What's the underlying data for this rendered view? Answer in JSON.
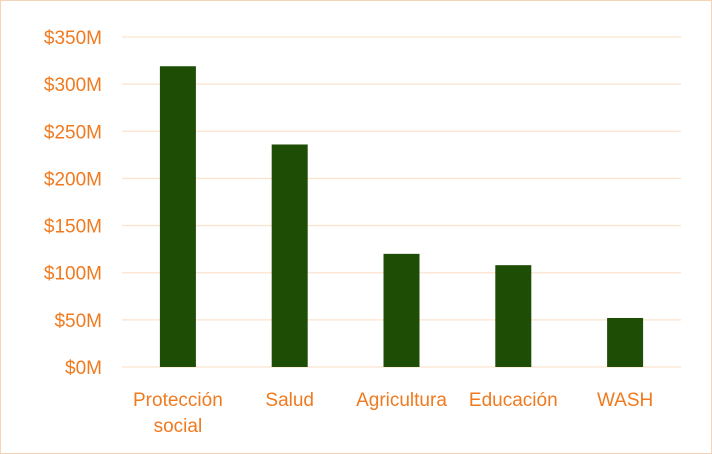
{
  "colors": {
    "bar": "#1e4d05",
    "label_text": "#f07a1f",
    "gridline": "#fbe3cf",
    "frame_border": "#f6d3b5"
  },
  "chart_data": {
    "type": "bar",
    "categories": [
      [
        "Protección",
        "social"
      ],
      [
        "Salud"
      ],
      [
        "Agricultura"
      ],
      [
        "Educación"
      ],
      [
        "WASH"
      ]
    ],
    "values": [
      319,
      236,
      120,
      108,
      52
    ],
    "ylim": [
      0,
      350
    ],
    "y_ticks": [
      0,
      50,
      100,
      150,
      200,
      250,
      300,
      350
    ],
    "y_tick_labels": [
      "$0M",
      "$50M",
      "$100M",
      "$150M",
      "$200M",
      "$250M",
      "$300M",
      "$350M"
    ],
    "grid": true,
    "legend": "none"
  }
}
